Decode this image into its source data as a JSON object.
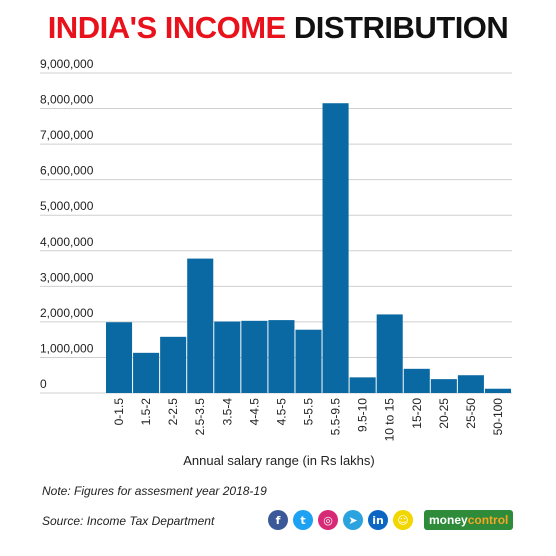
{
  "header": {
    "title_red": "INDIA'S INCOME",
    "title_black": "DISTRIBUTION"
  },
  "chart_data": {
    "type": "bar",
    "categories": [
      "0-1.5",
      "1.5-2",
      "2-2.5",
      "2.5-3.5",
      "3.5-4",
      "4-4.5",
      "4.5-5",
      "5-5.5",
      "5.5-9.5",
      "9.5-10",
      "10 to 15",
      "15-20",
      "20-25",
      "25-50",
      "50-100"
    ],
    "values": [
      1990000,
      1130000,
      1580000,
      3780000,
      2010000,
      2030000,
      2050000,
      1780000,
      8150000,
      440000,
      2210000,
      680000,
      390000,
      500000,
      120000
    ],
    "yticks": [
      "0",
      "1,000,000",
      "2,000,000",
      "3,000,000",
      "4,000,000",
      "5,000,000",
      "6,000,000",
      "7,000,000",
      "8,000,000",
      "9,000,000"
    ],
    "ylim": [
      0,
      9000000
    ],
    "xlabel": "Annual salary range (in Rs lakhs)",
    "ylabel": "",
    "grid": true,
    "bar_color": "#0a68a3"
  },
  "footer": {
    "note": "Note: Figures for assesment year 2018-19",
    "source": "Source: Income Tax Department",
    "brand_white": "money",
    "brand_orange": "control"
  },
  "social_icons": [
    {
      "name": "facebook-icon",
      "glyph": "f",
      "color": "#3b5998"
    },
    {
      "name": "twitter-icon",
      "glyph": "t",
      "color": "#1da1f2"
    },
    {
      "name": "instagram-icon",
      "glyph": "◎",
      "color": "#d62976"
    },
    {
      "name": "telegram-icon",
      "glyph": "➤",
      "color": "#2aa3de"
    },
    {
      "name": "linkedin-icon",
      "glyph": "in",
      "color": "#0a66c2"
    },
    {
      "name": "snapchat-icon",
      "glyph": "☺",
      "color": "#f2d600"
    }
  ]
}
